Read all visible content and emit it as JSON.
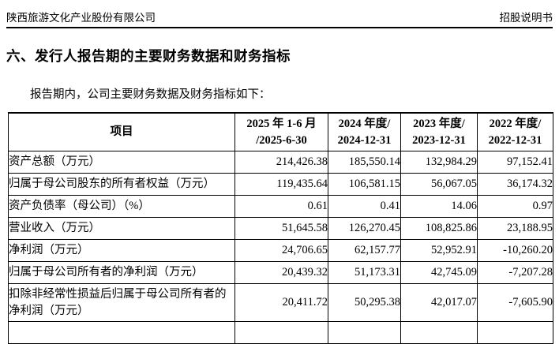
{
  "page_header": {
    "company": "陕西旅游文化产业股份有限公司",
    "doc_type": "招股说明书"
  },
  "section": {
    "title": "六、发行人报告期的主要财务数据和财务指标",
    "intro": "报告期内，公司主要财务数据及财务指标如下："
  },
  "table": {
    "header": {
      "item": "项目",
      "periods": [
        {
          "line1": "2025 年 1-6 月",
          "line2": "/2025-6-30"
        },
        {
          "line1": "2024 年度/",
          "line2": "2024-12-31"
        },
        {
          "line1": "2023 年度/",
          "line2": "2023-12-31"
        },
        {
          "line1": "2022 年度/",
          "line2": "2022-12-31"
        }
      ]
    },
    "rows": [
      {
        "label": "资产总额（万元）",
        "values": [
          "214,426.38",
          "185,550.14",
          "132,984.29",
          "97,152.41"
        ]
      },
      {
        "label": "归属于母公司股东的所有者权益（万元）",
        "values": [
          "119,435.64",
          "106,581.15",
          "56,067.05",
          "36,174.32"
        ]
      },
      {
        "label": "资产负债率（母公司）（%）",
        "values": [
          "0.61",
          "0.41",
          "14.06",
          "0.97"
        ]
      },
      {
        "label": "营业收入（万元）",
        "values": [
          "51,645.58",
          "126,270.45",
          "108,825.86",
          "23,188.95"
        ]
      },
      {
        "label": "净利润（万元）",
        "values": [
          "24,706.65",
          "62,157.77",
          "52,952.91",
          "-10,260.20"
        ]
      },
      {
        "label": "归属于母公司所有者的净利润（万元）",
        "values": [
          "20,439.32",
          "51,173.31",
          "42,745.09",
          "-7,207.28"
        ]
      },
      {
        "label": "扣除非经常性损益后归属于母公司所有者的净利润（万元）",
        "values": [
          "20,411.72",
          "50,295.38",
          "42,017.07",
          "-7,605.90"
        ]
      },
      {
        "label": "",
        "values": [
          "",
          "",
          "",
          ""
        ]
      }
    ]
  }
}
